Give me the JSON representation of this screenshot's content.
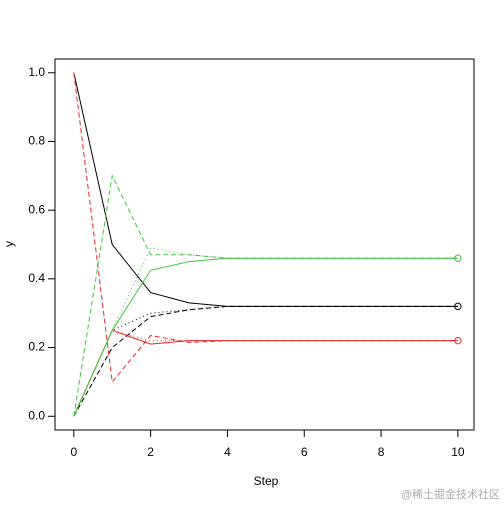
{
  "chart_data": {
    "type": "line",
    "x_label": "Step",
    "y_label": "y",
    "x": [
      0,
      1,
      2,
      3,
      4,
      5,
      6,
      7,
      8,
      9,
      10
    ],
    "series": [
      {
        "color": "#000000",
        "linestyle": "solid",
        "values": [
          1.0,
          0.5,
          0.36,
          0.33,
          0.32,
          0.32,
          0.32,
          0.32,
          0.32,
          0.32,
          0.32
        ],
        "end_marker": true
      },
      {
        "color": "#000000",
        "linestyle": "dashed",
        "values": [
          0,
          0.2,
          0.29,
          0.31,
          0.32,
          0.32,
          0.32,
          0.32,
          0.32,
          0.32,
          0.32
        ]
      },
      {
        "color": "#000000",
        "linestyle": "dotted",
        "values": [
          0,
          0.25,
          0.3,
          0.31,
          0.32,
          0.32,
          0.32,
          0.32,
          0.32,
          0.32,
          0.32
        ]
      },
      {
        "color": "#e8262b",
        "linestyle": "solid",
        "values": [
          0,
          0.25,
          0.21,
          0.22,
          0.22,
          0.22,
          0.22,
          0.22,
          0.22,
          0.22,
          0.22
        ],
        "end_marker": true
      },
      {
        "color": "#e8262b",
        "linestyle": "dashed",
        "values": [
          1.0,
          0.1,
          0.235,
          0.215,
          0.22,
          0.22,
          0.22,
          0.22,
          0.22,
          0.22,
          0.22
        ]
      },
      {
        "color": "#e8262b",
        "linestyle": "dotted",
        "values": [
          0,
          0.25,
          0.22,
          0.22,
          0.22,
          0.22,
          0.22,
          0.22,
          0.22,
          0.22,
          0.22
        ]
      },
      {
        "color": "#3cc83c",
        "linestyle": "solid",
        "values": [
          0,
          0.25,
          0.425,
          0.45,
          0.46,
          0.46,
          0.46,
          0.46,
          0.46,
          0.46,
          0.46
        ],
        "end_marker": true
      },
      {
        "color": "#3cc83c",
        "linestyle": "dashed",
        "values": [
          0,
          0.7,
          0.47,
          0.47,
          0.46,
          0.46,
          0.46,
          0.46,
          0.46,
          0.46,
          0.46
        ]
      },
      {
        "color": "#3cc83c",
        "linestyle": "dotted",
        "values": [
          0,
          0.25,
          0.49,
          0.47,
          0.46,
          0.46,
          0.46,
          0.46,
          0.46,
          0.46,
          0.46
        ]
      }
    ],
    "xlim": [
      -0.49,
      10.42
    ],
    "ylim": [
      -0.04,
      1.04
    ],
    "xticks": [
      0,
      2,
      4,
      6,
      8,
      10
    ],
    "yticks": [
      {
        "value": 0,
        "label": "0.0"
      },
      0.2,
      0.4,
      0.6,
      0.8,
      {
        "value": 1,
        "label": "1.0"
      }
    ],
    "watermark": "@稀土掘金技术社区"
  }
}
